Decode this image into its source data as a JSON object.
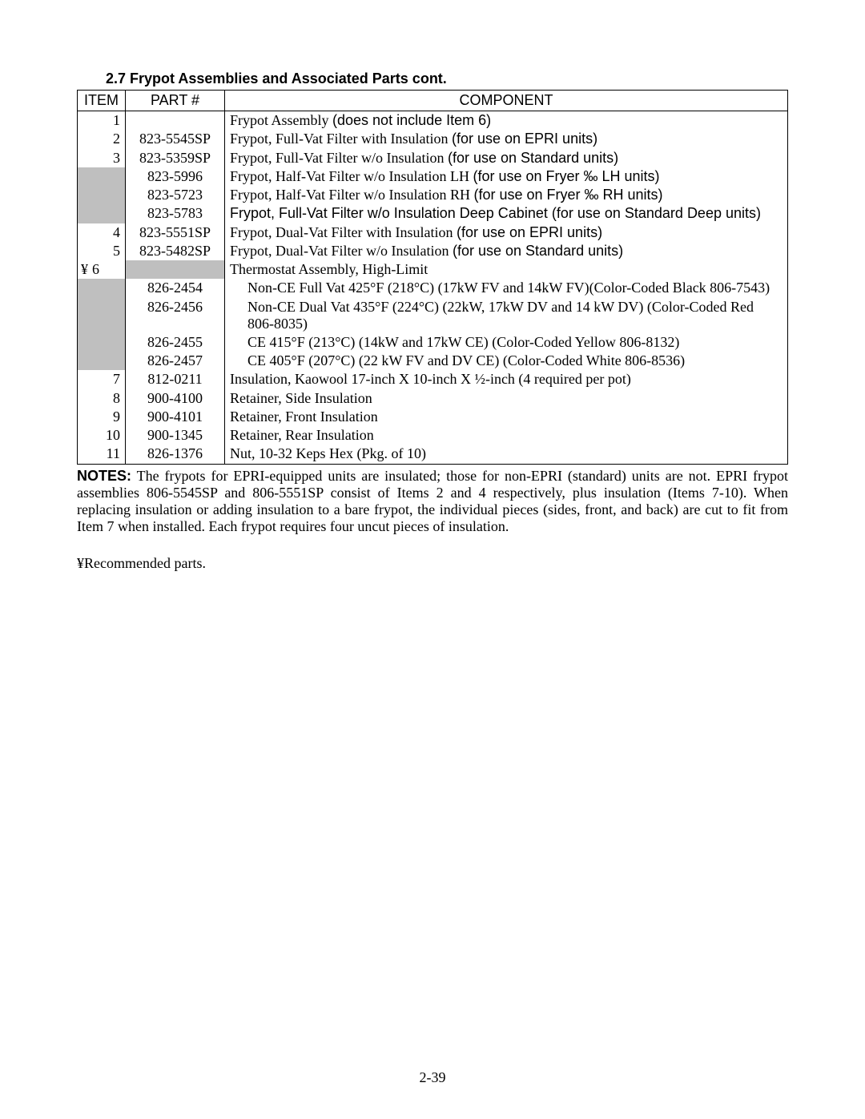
{
  "section_title": "2.7  Frypot Assemblies and Associated Parts cont.",
  "columns": {
    "item": "ITEM",
    "part": "PART #",
    "component": "COMPONENT"
  },
  "rows": [
    {
      "item_pre": "",
      "item": "1",
      "item_shade": false,
      "part": "",
      "part_shade": false,
      "component_html": "Frypot Assembly  <span class='arial'>(does not include Item 6)</span>"
    },
    {
      "item_pre": "",
      "item": "2",
      "item_shade": false,
      "part": "823-5545SP",
      "part_shade": false,
      "component_html": "Frypot, Full-Vat Filter with Insulation <span class='arial'>(for use on EPRI units)</span>"
    },
    {
      "item_pre": "",
      "item": "3",
      "item_shade": false,
      "part": "823-5359SP",
      "part_shade": false,
      "component_html": "Frypot, Full-Vat Filter w/o Insulation <span class='arial'>(for use on Standard units)</span>"
    },
    {
      "item_pre": "",
      "item": "",
      "item_shade": true,
      "part": "823-5996",
      "part_shade": false,
      "component_html": "Frypot, Half-Vat Filter w/o Insulation LH  <span class='arial'>(for use on Fryer ‰ LH units)</span>"
    },
    {
      "item_pre": "",
      "item": "",
      "item_shade": true,
      "part": "823-5723",
      "part_shade": false,
      "component_html": "Frypot, Half-Vat Filter w/o Insulation RH <span class='arial'>(for use on Fryer ‰ RH units)</span>"
    },
    {
      "item_pre": "",
      "item": "",
      "item_shade": true,
      "part": "823-5783",
      "part_shade": false,
      "component_html": "<span class='arial'>Frypot, Full-Vat Filter w/o Insulation Deep Cabinet (for use on Standard Deep units)</span>"
    },
    {
      "item_pre": "",
      "item": "4",
      "item_shade": false,
      "part": "823-5551SP",
      "part_shade": false,
      "component_html": "Frypot, Dual-Vat Filter  with Insulation <span class='arial'>(for use on EPRI  units)</span>"
    },
    {
      "item_pre": "",
      "item": "5",
      "item_shade": false,
      "part": "823-5482SP",
      "part_shade": false,
      "component_html": "Frypot, Dual-Vat Filter w/o Insulation <span class='arial'>(for use on Standard units)</span>"
    },
    {
      "item_pre": "¥",
      "item": "6",
      "item_shade": false,
      "part": "",
      "part_shade": true,
      "component_html": "Thermostat Assembly, High-Limit"
    },
    {
      "item_pre": "",
      "item": "",
      "item_shade": true,
      "part": "826-2454",
      "part_shade": false,
      "component_html": "<span class='indent'>Non-CE Full Vat 425°F (218°C) (17kW FV and 14kW FV)(Color-Coded Black 806-7543)</span>"
    },
    {
      "item_pre": "",
      "item": "",
      "item_shade": true,
      "part": "826-2456",
      "part_shade": false,
      "component_html": "<span class='indent'>Non-CE Dual Vat 435°F (224°C) (22kW, 17kW DV and 14 kW DV) (Color-Coded Red 806-8035)</span>"
    },
    {
      "item_pre": "",
      "item": "",
      "item_shade": true,
      "part": "826-2455",
      "part_shade": false,
      "component_html": "<span class='indent'>CE 415°F (213°C) (14kW  and 17kW CE) (Color-Coded Yellow 806-8132)</span>"
    },
    {
      "item_pre": "",
      "item": "",
      "item_shade": true,
      "part": "826-2457",
      "part_shade": false,
      "component_html": "<span class='indent'>CE 405°F (207°C) (22 kW FV and DV CE) (Color-Coded White 806-8536)</span>"
    },
    {
      "item_pre": "",
      "item": "7",
      "item_shade": false,
      "part": "812-0211",
      "part_shade": false,
      "component_html": "Insulation, Kaowool 17-inch X 10-inch X ½-inch (4 required per pot)"
    },
    {
      "item_pre": "",
      "item": "8",
      "item_shade": false,
      "part": "900-4100",
      "part_shade": false,
      "component_html": "Retainer, Side Insulation"
    },
    {
      "item_pre": "",
      "item": "9",
      "item_shade": false,
      "part": "900-4101",
      "part_shade": false,
      "component_html": "Retainer, Front Insulation"
    },
    {
      "item_pre": "",
      "item": "10",
      "item_shade": false,
      "part": "900-1345",
      "part_shade": false,
      "component_html": "Retainer, Rear Insulation"
    },
    {
      "item_pre": "",
      "item": "11",
      "item_shade": false,
      "part": "826-1376",
      "part_shade": false,
      "component_html": "Nut, 10-32 Keps Hex (Pkg. of 10)"
    }
  ],
  "notes_label": "NOTES:",
  "notes_body": "  The frypots for EPRI-equipped units are insulated; those for non-EPRI (standard) units are not.  EPRI frypot assemblies 806-5545SP and 806-5551SP consist of Items 2 and 4 respectively, plus insulation (Items 7-10).  When replacing insulation or adding insulation to a bare frypot, the individual pieces (sides, front, and back) are cut to fit from Item 7 when installed.  Each frypot requires four uncut pieces of insulation.",
  "recommended": "¥Recommended parts.",
  "page_number": "2-39"
}
